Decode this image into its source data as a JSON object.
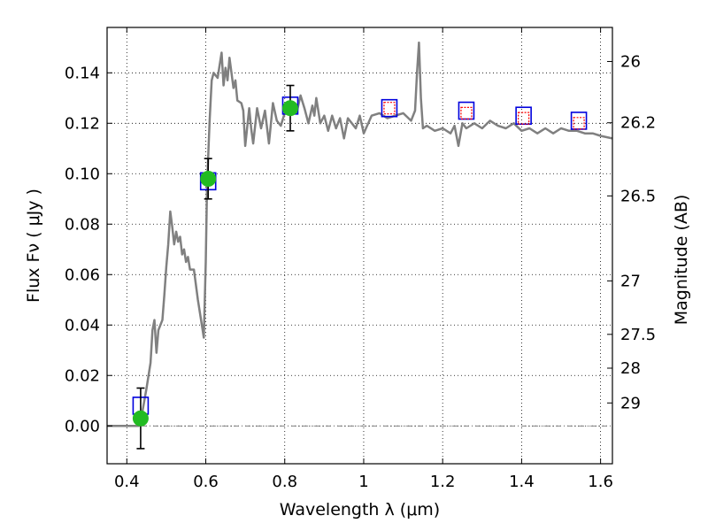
{
  "chart_data": {
    "type": "line",
    "xlabel": "Wavelength  λ (μm)",
    "ylabel": "Flux  Fν  ( μJy )",
    "y2label": "Magnitude (AB)",
    "xlim": [
      0.35,
      1.63
    ],
    "ylim": [
      -0.015,
      0.158
    ],
    "grid": true,
    "x_ticks": [
      0.4,
      0.6,
      0.8,
      1.0,
      1.2,
      1.4,
      1.6
    ],
    "x_tick_labels": [
      "0.4",
      "0.6",
      "0.8",
      "1",
      "1.2",
      "1.4",
      "1.6"
    ],
    "y_ticks": [
      0.0,
      0.02,
      0.04,
      0.06,
      0.08,
      0.1,
      0.12,
      0.14
    ],
    "y_tick_labels": [
      "0.00",
      "0.02",
      "0.04",
      "0.06",
      "0.08",
      "0.10",
      "0.12",
      "0.14"
    ],
    "y2_ticks": [
      {
        "label": "26",
        "flux": 0.1445
      },
      {
        "label": "26.2",
        "flux": 0.1202
      },
      {
        "label": "26.5",
        "flux": 0.0912
      },
      {
        "label": "27",
        "flux": 0.0575
      },
      {
        "label": "27.5",
        "flux": 0.0363
      },
      {
        "label": "28",
        "flux": 0.0229
      },
      {
        "label": "29",
        "flux": 0.0091
      }
    ],
    "series": [
      {
        "kind": "model-spectrum",
        "color": "#808080",
        "x": [
          0.35,
          0.43,
          0.44,
          0.45,
          0.46,
          0.465,
          0.47,
          0.475,
          0.48,
          0.49,
          0.495,
          0.5,
          0.505,
          0.51,
          0.515,
          0.52,
          0.525,
          0.53,
          0.535,
          0.54,
          0.545,
          0.55,
          0.555,
          0.56,
          0.57,
          0.58,
          0.59,
          0.595,
          0.6,
          0.603,
          0.607,
          0.61,
          0.615,
          0.62,
          0.63,
          0.64,
          0.645,
          0.65,
          0.655,
          0.66,
          0.67,
          0.675,
          0.68,
          0.69,
          0.695,
          0.7,
          0.71,
          0.715,
          0.72,
          0.73,
          0.74,
          0.75,
          0.76,
          0.77,
          0.78,
          0.79,
          0.8,
          0.81,
          0.82,
          0.83,
          0.84,
          0.85,
          0.86,
          0.87,
          0.875,
          0.88,
          0.89,
          0.9,
          0.91,
          0.92,
          0.93,
          0.94,
          0.95,
          0.96,
          0.97,
          0.98,
          0.99,
          1.0,
          1.02,
          1.04,
          1.06,
          1.08,
          1.1,
          1.12,
          1.13,
          1.135,
          1.14,
          1.145,
          1.15,
          1.16,
          1.18,
          1.2,
          1.22,
          1.23,
          1.24,
          1.25,
          1.26,
          1.28,
          1.3,
          1.32,
          1.34,
          1.36,
          1.38,
          1.4,
          1.42,
          1.44,
          1.46,
          1.48,
          1.5,
          1.52,
          1.54,
          1.56,
          1.58,
          1.6,
          1.63
        ],
        "y": [
          0.0,
          0.0,
          0.006,
          0.015,
          0.025,
          0.038,
          0.042,
          0.029,
          0.038,
          0.042,
          0.052,
          0.063,
          0.072,
          0.085,
          0.079,
          0.072,
          0.077,
          0.073,
          0.075,
          0.068,
          0.07,
          0.065,
          0.067,
          0.062,
          0.062,
          0.05,
          0.04,
          0.035,
          0.065,
          0.094,
          0.11,
          0.122,
          0.137,
          0.14,
          0.138,
          0.148,
          0.135,
          0.142,
          0.137,
          0.146,
          0.134,
          0.137,
          0.129,
          0.128,
          0.125,
          0.111,
          0.126,
          0.118,
          0.112,
          0.126,
          0.118,
          0.125,
          0.112,
          0.128,
          0.121,
          0.119,
          0.124,
          0.128,
          0.126,
          0.124,
          0.131,
          0.126,
          0.12,
          0.127,
          0.123,
          0.13,
          0.12,
          0.123,
          0.117,
          0.123,
          0.118,
          0.122,
          0.114,
          0.122,
          0.12,
          0.118,
          0.123,
          0.116,
          0.123,
          0.124,
          0.122,
          0.123,
          0.124,
          0.121,
          0.125,
          0.14,
          0.152,
          0.13,
          0.118,
          0.119,
          0.117,
          0.118,
          0.116,
          0.119,
          0.111,
          0.12,
          0.118,
          0.12,
          0.118,
          0.121,
          0.119,
          0.118,
          0.12,
          0.117,
          0.118,
          0.116,
          0.118,
          0.116,
          0.118,
          0.117,
          0.117,
          0.116,
          0.116,
          0.115,
          0.114
        ]
      },
      {
        "kind": "observed-flux",
        "color": "#22bb22",
        "points": [
          {
            "x": 0.435,
            "y": 0.003,
            "err": 0.012
          },
          {
            "x": 0.606,
            "y": 0.098,
            "err": 0.008
          },
          {
            "x": 0.814,
            "y": 0.126,
            "err": 0.009
          }
        ]
      },
      {
        "kind": "model-photometry",
        "color": "#0000dd",
        "points": [
          {
            "x": 0.435,
            "y": 0.008
          },
          {
            "x": 0.606,
            "y": 0.097
          },
          {
            "x": 0.814,
            "y": 0.127
          },
          {
            "x": 1.065,
            "y": 0.126
          },
          {
            "x": 1.26,
            "y": 0.125
          },
          {
            "x": 1.405,
            "y": 0.123
          },
          {
            "x": 1.545,
            "y": 0.121
          }
        ]
      },
      {
        "kind": "observed-ir",
        "color": "#ff0000",
        "points": [
          {
            "x": 1.065,
            "y": 0.126
          },
          {
            "x": 1.26,
            "y": 0.124
          },
          {
            "x": 1.405,
            "y": 0.122
          },
          {
            "x": 1.545,
            "y": 0.12
          }
        ]
      }
    ],
    "reference_line": {
      "y": 0.0,
      "style": "dash-dot"
    }
  }
}
